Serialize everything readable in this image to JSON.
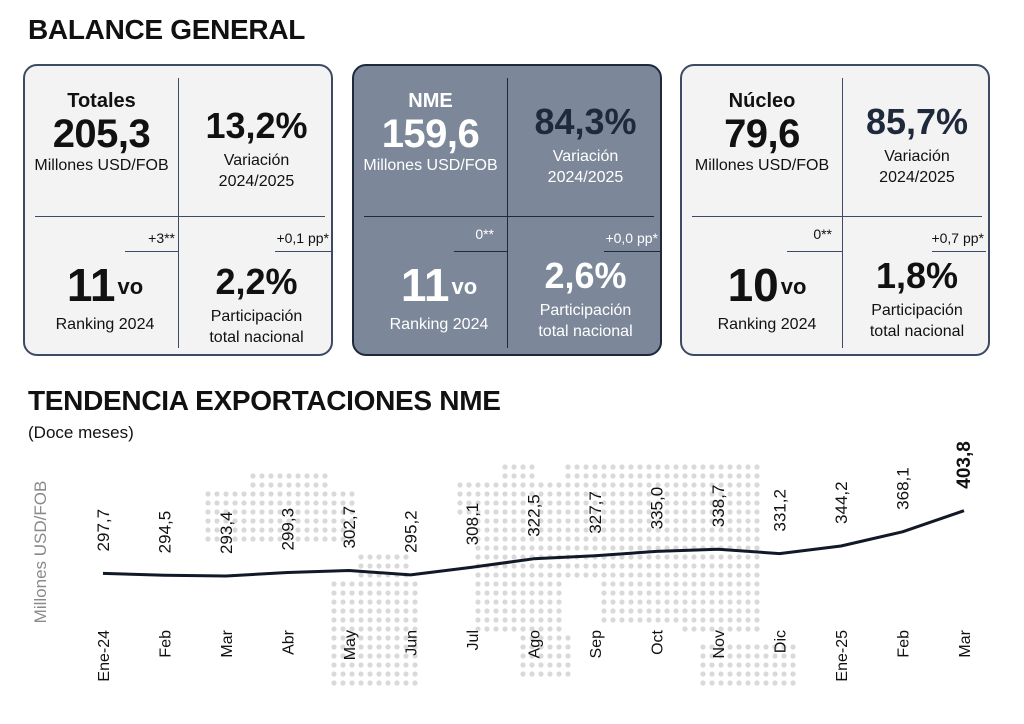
{
  "balance": {
    "title": "BALANCE GENERAL",
    "cards": [
      {
        "name": "Totales",
        "value": "205,3",
        "unit": "Millones USD/FOB",
        "variation": "13,2%",
        "variation_label_1": "Variación",
        "variation_label_2": "2024/2025",
        "rank_change": "+3**",
        "rank_num": "11",
        "rank_suffix": "vo",
        "rank_label": "Ranking 2024",
        "share_change": "+0,1 pp*",
        "share": "2,2%",
        "share_label_1": "Participación",
        "share_label_2": "total nacional"
      },
      {
        "name": "NME",
        "value": "159,6",
        "unit": "Millones USD/FOB",
        "variation": "84,3%",
        "variation_label_1": "Variación",
        "variation_label_2": "2024/2025",
        "rank_change": "0**",
        "rank_num": "11",
        "rank_suffix": "vo",
        "rank_label": "Ranking 2024",
        "share_change": "+0,0 pp*",
        "share": "2,6%",
        "share_label_1": "Participación",
        "share_label_2": "total nacional"
      },
      {
        "name": "Núcleo",
        "value": "79,6",
        "unit": "Millones USD/FOB",
        "variation": "85,7%",
        "variation_label_1": "Variación",
        "variation_label_2": "2024/2025",
        "rank_change": "0**",
        "rank_num": "10",
        "rank_suffix": "vo",
        "rank_label": "Ranking 2024",
        "share_change": "+0,7 pp*",
        "share": "1,8%",
        "share_label_1": "Participación",
        "share_label_2": "total nacional"
      }
    ]
  },
  "trend": {
    "title": "TENDENCIA EXPORTACIONES NME",
    "subtitle": "(Doce meses)"
  },
  "colors": {
    "line": "#111827",
    "dark_card": "#7c8899",
    "border": "#3c4a63",
    "map_dots": "#d9d9d9"
  },
  "chart_data": {
    "type": "line",
    "ylabel": "Millones USD/FOB",
    "categories": [
      "Ene-24",
      "Feb",
      "Mar",
      "Abr",
      "May",
      "Jun",
      "Jul",
      "Ago",
      "Sep",
      "Oct",
      "Nov",
      "Dic",
      "Ene-25",
      "Feb",
      "Mar"
    ],
    "values": [
      297.7,
      294.5,
      293.4,
      299.3,
      302.7,
      295.2,
      308.1,
      322.5,
      327.7,
      335.0,
      338.7,
      331.2,
      344.2,
      368.1,
      403.8
    ],
    "labels": [
      "297,7",
      "294,5",
      "293,4",
      "299,3",
      "302,7",
      "295,2",
      "308,1",
      "322,5",
      "327,7",
      "335,0",
      "338,7",
      "331,2",
      "344,2",
      "368,1",
      "403,8"
    ],
    "grid": false
  }
}
